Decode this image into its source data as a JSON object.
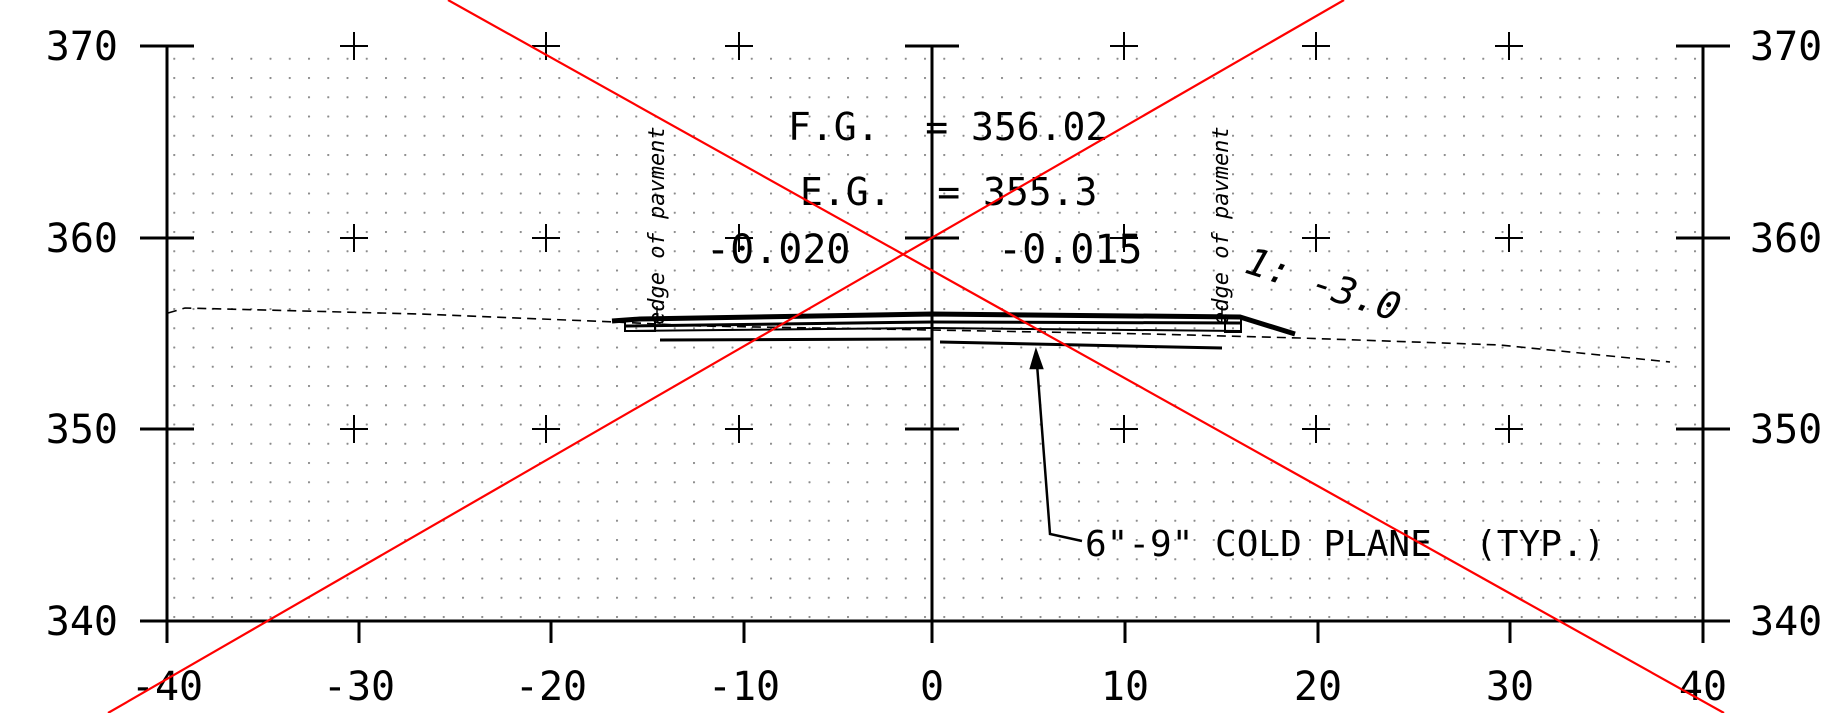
{
  "axes": {
    "y_left_labels": [
      "370",
      "360",
      "350",
      "340"
    ],
    "y_right_labels": [
      "370",
      "360",
      "350",
      "340"
    ],
    "x_labels": [
      "-40",
      "-30",
      "-20",
      "-10",
      "0",
      "10",
      "20",
      "30",
      "40"
    ]
  },
  "annotations": {
    "fg": "F.G.  = 356.02",
    "eg": "E.G.  = 355.3",
    "slope_left": "-0.020",
    "slope_right": "-0.015",
    "side_slope": "1: -3.0",
    "edge_left": "edge of pavment",
    "edge_right": "edge of pavment",
    "callout": "6\"-9\" COLD PLANE  (TYP.)"
  },
  "colors": {
    "line": "#000000",
    "grid_dots": "#8a8a8a",
    "cross_out": "#ff0000"
  }
}
